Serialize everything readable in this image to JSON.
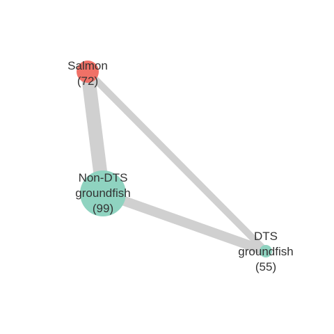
{
  "network": {
    "nodes": [
      {
        "id": "salmon",
        "label_lines": [
          "Salmon",
          "(72)"
        ],
        "count": 72,
        "color": "#f07167"
      },
      {
        "id": "non-dts",
        "label_lines": [
          "Non-DTS",
          "groundfish",
          "(99)"
        ],
        "count": 99,
        "color": "#8fd3c0"
      },
      {
        "id": "dts",
        "label_lines": [
          "DTS",
          "groundfish",
          "(55)"
        ],
        "count": 55,
        "color": "#8fd3c0"
      }
    ],
    "edges": [
      {
        "source": "salmon",
        "target": "non-dts",
        "weight": "heavy"
      },
      {
        "source": "salmon",
        "target": "dts",
        "weight": "light"
      },
      {
        "source": "non-dts",
        "target": "dts",
        "weight": "medium"
      }
    ],
    "edge_color": "#d0d0d0"
  }
}
